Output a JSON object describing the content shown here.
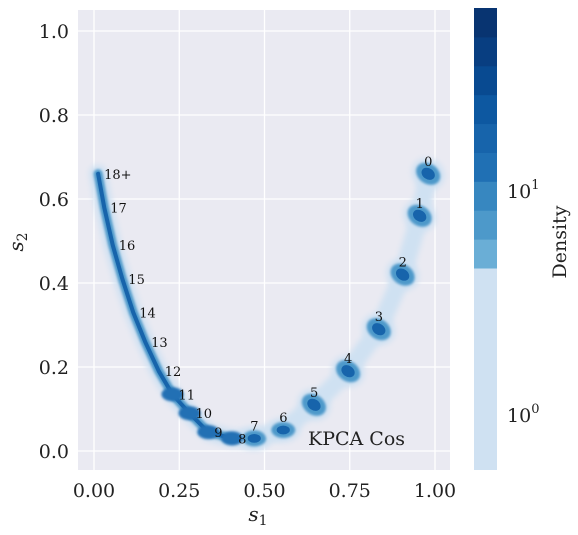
{
  "chart_data": {
    "type": "density-scatter",
    "title": "",
    "inset_label": "KPCA Cos",
    "xlabel": "s",
    "xlabel_sub": "1",
    "ylabel": "s",
    "ylabel_sub": "2",
    "xlim": [
      -0.05,
      1.05
    ],
    "ylim": [
      -0.05,
      1.05
    ],
    "xticks": [
      0.0,
      0.25,
      0.5,
      0.75,
      1.0
    ],
    "xtick_labels": [
      "0.00",
      "0.25",
      "0.50",
      "0.75",
      "1.00"
    ],
    "yticks": [
      0.0,
      0.2,
      0.4,
      0.6,
      0.8,
      1.0
    ],
    "ytick_labels": [
      "0.0",
      "0.2",
      "0.4",
      "0.6",
      "0.8",
      "1.0"
    ],
    "grid": true,
    "background": "#eaeaf2",
    "colormap": "Blues",
    "colorbar": {
      "label": "Density",
      "scale": "log",
      "ticks": [
        {
          "base": "10",
          "exp": "0"
        },
        {
          "base": "10",
          "exp": "1"
        }
      ],
      "colors": [
        "#cfe1f2",
        "#6aaed6",
        "#4d99ca",
        "#3787c0",
        "#2070b4",
        "#1764ab",
        "#0d58a1",
        "#084a91",
        "#083e81",
        "#083471"
      ]
    },
    "left_branch": [
      {
        "label": "18+",
        "x": 0.012,
        "y": 0.66
      },
      {
        "label": "17",
        "x": 0.03,
        "y": 0.58
      },
      {
        "label": "16",
        "x": 0.055,
        "y": 0.49
      },
      {
        "label": "15",
        "x": 0.083,
        "y": 0.41
      },
      {
        "label": "14",
        "x": 0.115,
        "y": 0.33
      },
      {
        "label": "13",
        "x": 0.15,
        "y": 0.26
      },
      {
        "label": "12",
        "x": 0.19,
        "y": 0.19
      },
      {
        "label": "11",
        "x": 0.23,
        "y": 0.135
      },
      {
        "label": "10",
        "x": 0.28,
        "y": 0.09
      },
      {
        "label": "9",
        "x": 0.335,
        "y": 0.045
      },
      {
        "label": "8",
        "x": 0.405,
        "y": 0.03
      }
    ],
    "right_branch": [
      {
        "label": "7",
        "x": 0.47,
        "y": 0.03
      },
      {
        "label": "6",
        "x": 0.555,
        "y": 0.05
      },
      {
        "label": "5",
        "x": 0.645,
        "y": 0.11
      },
      {
        "label": "4",
        "x": 0.745,
        "y": 0.19
      },
      {
        "label": "3",
        "x": 0.835,
        "y": 0.29
      },
      {
        "label": "2",
        "x": 0.905,
        "y": 0.42
      },
      {
        "label": "1",
        "x": 0.955,
        "y": 0.56
      },
      {
        "label": "0",
        "x": 0.98,
        "y": 0.66
      }
    ]
  }
}
